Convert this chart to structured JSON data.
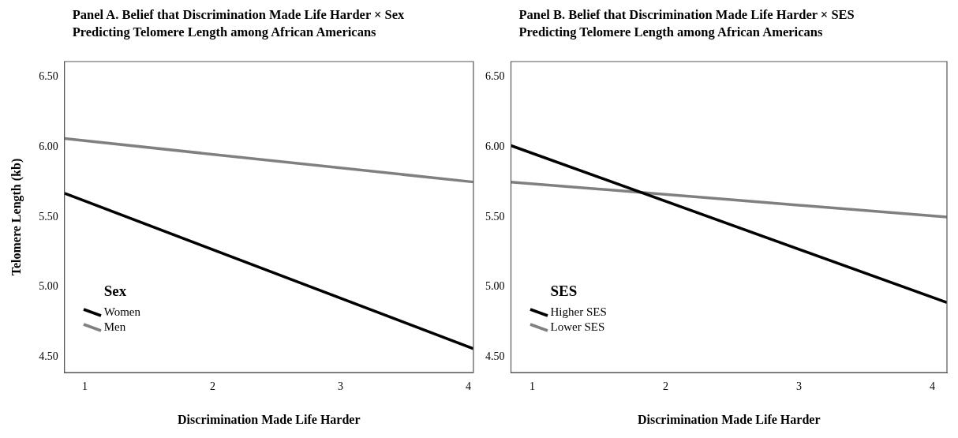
{
  "chart_data": [
    {
      "type": "line",
      "title": "Panel A. Belief that Discrimination Made Life Harder × Sex\nPredicting Telomere Length among African Americans",
      "xlabel": "Discrimination Made Life Harder",
      "ylabel": "Telomere Length (kb)",
      "legend_title": "Sex",
      "legend": "bottom left",
      "grid": false,
      "marker": "none",
      "line_style": "solid",
      "xlim": [
        0.84,
        4.04
      ],
      "xticks": [
        1,
        2,
        3,
        4
      ],
      "ylim": [
        4.39,
        6.61
      ],
      "yticks": [
        {
          "value": 4.5,
          "label": "4.50"
        },
        {
          "value": 5,
          "label": "5.00"
        },
        {
          "value": 5.5,
          "label": "5.50"
        },
        {
          "value": 6,
          "label": "6.00"
        },
        {
          "value": 6.5,
          "label": "6.50"
        }
      ],
      "series": [
        {
          "name": "Women",
          "color": "#000000",
          "x": [
            0.84,
            4.04
          ],
          "values": [
            5.67,
            4.56
          ]
        },
        {
          "name": "Men",
          "color": "#808080",
          "x": [
            0.84,
            4.04
          ],
          "values": [
            6.06,
            5.75
          ]
        }
      ]
    },
    {
      "type": "line",
      "title": "Panel B. Belief that Discrimination Made Life Harder × SES\nPredicting Telomere Length among African Americans",
      "xlabel": "Discrimination Made Life Harder",
      "legend_title": "SES",
      "legend": "bottom left",
      "grid": false,
      "marker": "none",
      "line_style": "solid",
      "xlim": [
        0.84,
        4.11
      ],
      "xticks": [
        1,
        2,
        3,
        4
      ],
      "ylim": [
        4.39,
        6.61
      ],
      "yticks": [
        {
          "value": 4.5,
          "label": "4.50"
        },
        {
          "value": 5,
          "label": "5.00"
        },
        {
          "value": 5.5,
          "label": "5.50"
        },
        {
          "value": 6,
          "label": "6.00"
        },
        {
          "value": 6.5,
          "label": "6.50"
        }
      ],
      "series": [
        {
          "name": "Higher SES",
          "color": "#000000",
          "x": [
            0.84,
            4.11
          ],
          "values": [
            6.01,
            4.89
          ]
        },
        {
          "name": "Lower SES",
          "color": "#808080",
          "x": [
            0.84,
            4.11
          ],
          "values": [
            5.75,
            5.5
          ]
        }
      ]
    }
  ]
}
